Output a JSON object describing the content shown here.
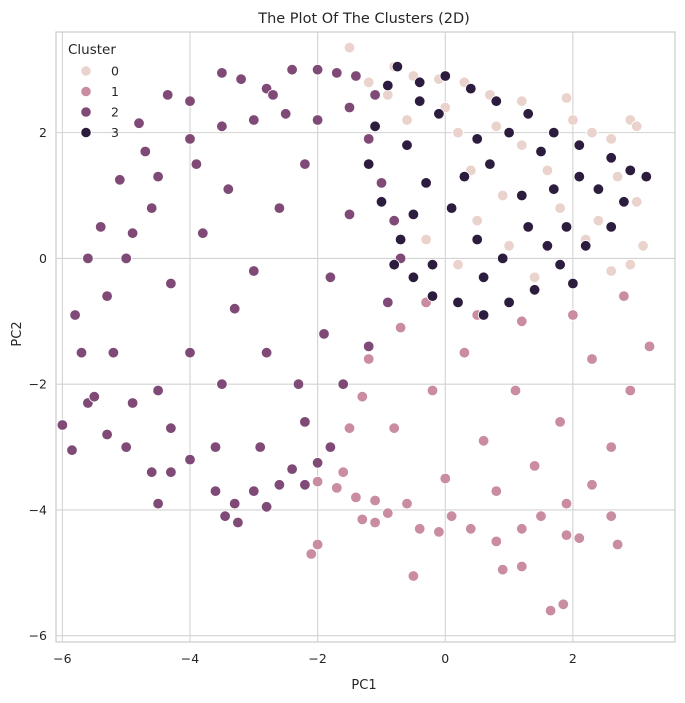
{
  "chart_data": {
    "type": "scatter",
    "title": "The Plot Of The Clusters (2D)",
    "xlabel": "PC1",
    "ylabel": "PC2",
    "xlim": [
      -6.1,
      3.6
    ],
    "ylim": [
      -6.1,
      3.6
    ],
    "x_ticks": [
      -6,
      -4,
      -2,
      0,
      2
    ],
    "y_ticks": [
      -6,
      -4,
      -2,
      0,
      2
    ],
    "grid": true,
    "legend_title": "Cluster",
    "legend_position": "top-left",
    "series": [
      {
        "name": "0",
        "color": "#EBD3CD",
        "values": [
          [
            -1.5,
            3.35
          ],
          [
            -0.8,
            3.05
          ],
          [
            -0.5,
            2.9
          ],
          [
            -0.1,
            2.85
          ],
          [
            0.3,
            2.8
          ],
          [
            0.7,
            2.6
          ],
          [
            1.2,
            2.5
          ],
          [
            1.9,
            2.55
          ],
          [
            2.3,
            2.0
          ],
          [
            2.6,
            1.9
          ],
          [
            2.9,
            2.2
          ],
          [
            3.0,
            2.1
          ],
          [
            2.7,
            1.3
          ],
          [
            3.0,
            0.9
          ],
          [
            3.1,
            0.2
          ],
          [
            2.9,
            -0.1
          ],
          [
            2.2,
            0.3
          ],
          [
            1.8,
            0.8
          ],
          [
            1.2,
            1.8
          ],
          [
            0.8,
            2.1
          ],
          [
            0.4,
            1.4
          ],
          [
            0.0,
            2.4
          ],
          [
            -0.6,
            2.2
          ],
          [
            -0.9,
            2.6
          ],
          [
            -1.2,
            2.8
          ],
          [
            1.0,
            0.2
          ],
          [
            1.6,
            1.4
          ],
          [
            2.4,
            0.6
          ],
          [
            2.0,
            2.2
          ],
          [
            0.5,
            0.6
          ],
          [
            -0.3,
            0.3
          ],
          [
            0.2,
            -0.1
          ],
          [
            1.4,
            -0.3
          ],
          [
            2.6,
            -0.2
          ],
          [
            0.9,
            1.0
          ],
          [
            0.2,
            2.0
          ]
        ]
      },
      {
        "name": "1",
        "color": "#C98CA0",
        "values": [
          [
            -2.1,
            -4.7
          ],
          [
            -2.0,
            -4.55
          ],
          [
            -1.7,
            -3.65
          ],
          [
            -1.4,
            -3.8
          ],
          [
            -1.1,
            -3.85
          ],
          [
            -0.9,
            -4.05
          ],
          [
            -0.6,
            -3.9
          ],
          [
            -1.1,
            -4.2
          ],
          [
            -1.3,
            -4.15
          ],
          [
            -0.4,
            -4.3
          ],
          [
            -0.1,
            -4.35
          ],
          [
            0.1,
            -4.1
          ],
          [
            0.4,
            -4.3
          ],
          [
            0.8,
            -4.5
          ],
          [
            1.2,
            -4.3
          ],
          [
            1.5,
            -4.1
          ],
          [
            1.9,
            -4.4
          ],
          [
            2.1,
            -4.45
          ],
          [
            2.6,
            -4.1
          ],
          [
            2.7,
            -4.55
          ],
          [
            -0.5,
            -5.05
          ],
          [
            0.9,
            -4.95
          ],
          [
            1.2,
            -4.9
          ],
          [
            1.65,
            -5.6
          ],
          [
            1.85,
            -5.5
          ],
          [
            -1.6,
            -3.4
          ],
          [
            -1.8,
            -3.0
          ],
          [
            -2.0,
            -3.55
          ],
          [
            -0.3,
            -0.7
          ],
          [
            0.5,
            -0.9
          ],
          [
            1.2,
            -1.0
          ],
          [
            2.0,
            -0.9
          ],
          [
            2.8,
            -0.6
          ],
          [
            3.2,
            -1.4
          ],
          [
            2.9,
            -2.1
          ],
          [
            2.6,
            -3.0
          ],
          [
            2.3,
            -3.6
          ],
          [
            1.9,
            -3.9
          ],
          [
            0.0,
            -3.5
          ],
          [
            -0.8,
            -2.7
          ],
          [
            -1.3,
            -2.2
          ],
          [
            -1.5,
            -2.7
          ],
          [
            -1.2,
            -1.6
          ],
          [
            -0.7,
            -1.1
          ],
          [
            0.3,
            -1.5
          ],
          [
            1.1,
            -2.1
          ],
          [
            1.8,
            -2.6
          ],
          [
            0.6,
            -2.9
          ],
          [
            -0.2,
            -2.1
          ],
          [
            1.4,
            -3.3
          ],
          [
            2.3,
            -1.6
          ],
          [
            0.8,
            -3.7
          ]
        ]
      },
      {
        "name": "2",
        "color": "#7F4A76",
        "values": [
          [
            -3.5,
            2.95
          ],
          [
            -3.2,
            2.85
          ],
          [
            -2.8,
            2.7
          ],
          [
            -2.4,
            3.0
          ],
          [
            -2.0,
            3.0
          ],
          [
            -1.7,
            2.95
          ],
          [
            -1.4,
            2.9
          ],
          [
            -4.0,
            2.5
          ],
          [
            -4.35,
            2.6
          ],
          [
            -4.8,
            2.15
          ],
          [
            -5.1,
            1.25
          ],
          [
            -5.6,
            0.0
          ],
          [
            -5.8,
            -0.9
          ],
          [
            -5.7,
            -1.5
          ],
          [
            -5.6,
            -2.3
          ],
          [
            -6.0,
            -2.65
          ],
          [
            -5.85,
            -3.05
          ],
          [
            -5.5,
            -2.2
          ],
          [
            -5.3,
            -2.8
          ],
          [
            -5.0,
            -3.0
          ],
          [
            -4.6,
            -3.4
          ],
          [
            -4.5,
            -3.9
          ],
          [
            -4.3,
            -3.4
          ],
          [
            -4.0,
            -3.2
          ],
          [
            -3.6,
            -3.7
          ],
          [
            -3.45,
            -4.1
          ],
          [
            -3.25,
            -4.2
          ],
          [
            -3.3,
            -3.9
          ],
          [
            -3.0,
            -3.7
          ],
          [
            -2.8,
            -3.95
          ],
          [
            -2.6,
            -3.6
          ],
          [
            -2.4,
            -3.35
          ],
          [
            -2.2,
            -3.6
          ],
          [
            -2.0,
            -3.25
          ],
          [
            -1.8,
            -3.0
          ],
          [
            -4.9,
            0.4
          ],
          [
            -4.5,
            1.3
          ],
          [
            -4.0,
            1.9
          ],
          [
            -3.5,
            2.1
          ],
          [
            -3.0,
            2.2
          ],
          [
            -2.5,
            2.3
          ],
          [
            -2.0,
            2.2
          ],
          [
            -1.5,
            2.4
          ],
          [
            -1.2,
            1.9
          ],
          [
            -1.0,
            1.2
          ],
          [
            -0.8,
            0.6
          ],
          [
            -0.7,
            0.0
          ],
          [
            -0.9,
            -0.7
          ],
          [
            -1.2,
            -1.4
          ],
          [
            -1.6,
            -2.0
          ],
          [
            -2.2,
            -2.6
          ],
          [
            -2.9,
            -3.0
          ],
          [
            -3.6,
            -3.0
          ],
          [
            -4.3,
            -2.7
          ],
          [
            -4.9,
            -2.3
          ],
          [
            -5.2,
            -1.5
          ],
          [
            -5.3,
            -0.6
          ],
          [
            -5.0,
            0.0
          ],
          [
            -4.6,
            0.8
          ],
          [
            -4.3,
            -0.4
          ],
          [
            -3.8,
            0.4
          ],
          [
            -3.4,
            1.1
          ],
          [
            -3.0,
            -0.2
          ],
          [
            -2.6,
            0.8
          ],
          [
            -2.2,
            1.5
          ],
          [
            -1.8,
            -0.3
          ],
          [
            -1.5,
            0.7
          ],
          [
            -4.0,
            -1.5
          ],
          [
            -3.5,
            -2.0
          ],
          [
            -2.8,
            -1.5
          ],
          [
            -2.3,
            -2.0
          ],
          [
            -1.9,
            -1.2
          ],
          [
            -3.3,
            -0.8
          ],
          [
            -4.5,
            -2.1
          ],
          [
            -5.4,
            0.5
          ],
          [
            -4.7,
            1.7
          ],
          [
            -3.9,
            1.5
          ],
          [
            -2.7,
            2.6
          ],
          [
            -1.1,
            2.6
          ]
        ]
      },
      {
        "name": "3",
        "color": "#2C1C3E",
        "values": [
          [
            -0.9,
            2.75
          ],
          [
            -0.75,
            3.05
          ],
          [
            -0.4,
            2.8
          ],
          [
            0.0,
            2.9
          ],
          [
            0.4,
            2.7
          ],
          [
            0.8,
            2.5
          ],
          [
            1.3,
            2.3
          ],
          [
            1.7,
            2.0
          ],
          [
            2.1,
            1.8
          ],
          [
            2.6,
            1.6
          ],
          [
            2.9,
            1.4
          ],
          [
            3.15,
            1.3
          ],
          [
            2.8,
            0.9
          ],
          [
            2.6,
            0.5
          ],
          [
            2.2,
            0.2
          ],
          [
            1.8,
            -0.1
          ],
          [
            1.4,
            -0.5
          ],
          [
            1.0,
            -0.7
          ],
          [
            0.6,
            -0.9
          ],
          [
            0.2,
            -0.7
          ],
          [
            -0.2,
            -0.6
          ],
          [
            -0.5,
            -0.3
          ],
          [
            -0.7,
            0.3
          ],
          [
            -1.0,
            0.9
          ],
          [
            -1.2,
            1.5
          ],
          [
            -1.1,
            2.1
          ],
          [
            -0.6,
            1.8
          ],
          [
            -0.3,
            1.2
          ],
          [
            0.1,
            0.8
          ],
          [
            0.5,
            0.3
          ],
          [
            0.9,
            0.0
          ],
          [
            1.3,
            0.5
          ],
          [
            1.7,
            1.1
          ],
          [
            2.1,
            1.3
          ],
          [
            1.5,
            1.7
          ],
          [
            1.0,
            2.0
          ],
          [
            0.5,
            1.9
          ],
          [
            -0.1,
            2.3
          ],
          [
            -0.5,
            0.7
          ],
          [
            -0.2,
            -0.1
          ],
          [
            0.3,
            1.3
          ],
          [
            0.7,
            1.5
          ],
          [
            1.2,
            1.0
          ],
          [
            1.9,
            0.5
          ],
          [
            2.4,
            1.1
          ],
          [
            2.0,
            -0.4
          ],
          [
            1.6,
            0.2
          ],
          [
            -0.8,
            -0.1
          ],
          [
            -0.4,
            2.5
          ],
          [
            0.6,
            -0.3
          ]
        ]
      }
    ]
  }
}
